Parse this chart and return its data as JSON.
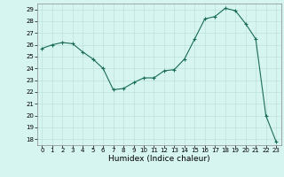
{
  "x": [
    0,
    1,
    2,
    3,
    4,
    5,
    6,
    7,
    8,
    9,
    10,
    11,
    12,
    13,
    14,
    15,
    16,
    17,
    18,
    19,
    20,
    21,
    22,
    23
  ],
  "y": [
    25.7,
    26.0,
    26.2,
    26.1,
    25.4,
    24.8,
    24.0,
    22.2,
    22.3,
    22.8,
    23.2,
    23.2,
    23.8,
    23.9,
    24.8,
    26.5,
    28.2,
    28.4,
    29.1,
    28.9,
    27.8,
    26.5,
    20.0,
    17.8
  ],
  "line_color": "#1a6b5a",
  "marker": "+",
  "marker_size": 3.5,
  "marker_linewidth": 0.8,
  "line_width": 0.8,
  "bg_color": "#d6f5f0",
  "grid_color": "#b8ddd8",
  "xlabel": "Humidex (Indice chaleur)",
  "xlim": [
    -0.5,
    23.5
  ],
  "ylim": [
    17.5,
    29.5
  ],
  "yticks": [
    18,
    19,
    20,
    21,
    22,
    23,
    24,
    25,
    26,
    27,
    28,
    29
  ],
  "xticks": [
    0,
    1,
    2,
    3,
    4,
    5,
    6,
    7,
    8,
    9,
    10,
    11,
    12,
    13,
    14,
    15,
    16,
    17,
    18,
    19,
    20,
    21,
    22,
    23
  ],
  "tick_fontsize": 5.0,
  "xlabel_fontsize": 6.5
}
